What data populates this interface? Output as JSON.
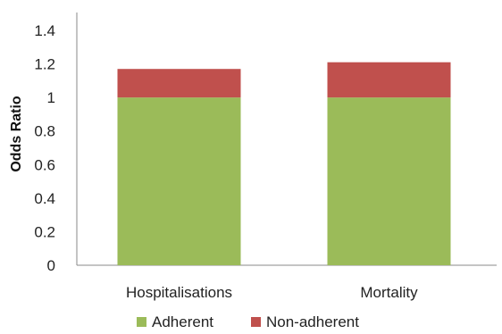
{
  "chart_data": {
    "type": "bar",
    "stacked": true,
    "categories": [
      "Hospitalisations",
      "Mortality"
    ],
    "series": [
      {
        "name": "Adherent",
        "values": [
          1.0,
          1.0
        ],
        "color": "#9BBB59"
      },
      {
        "name": "Non-adherent",
        "values": [
          0.17,
          0.21
        ],
        "color": "#C0504D"
      }
    ],
    "ylabel": "Odds Ratio",
    "xlabel": "",
    "title": "",
    "ylim": [
      0,
      1.4
    ],
    "yticks": [
      "0",
      "0.2",
      "0.4",
      "0.6",
      "0.8",
      "1",
      "1.2",
      "1.4"
    ],
    "grid": false,
    "legend_position": "bottom"
  }
}
